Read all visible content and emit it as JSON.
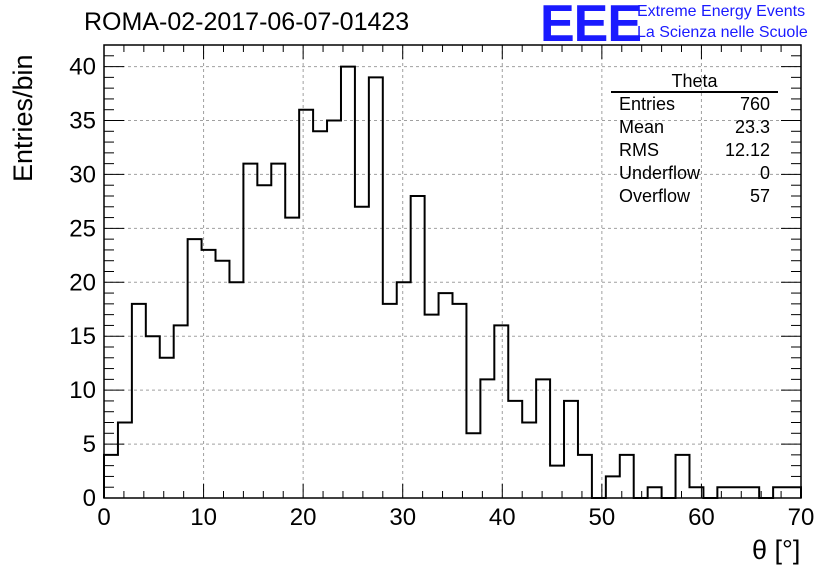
{
  "title": "ROMA-02-2017-06-07-01423",
  "logo": {
    "text": "EEE",
    "line1": "Extreme Energy Events",
    "line2": "La Scienza nelle Scuole"
  },
  "stats": {
    "name": "Theta",
    "rows": [
      {
        "label": "Entries",
        "value": "760"
      },
      {
        "label": "Mean",
        "value": "23.3"
      },
      {
        "label": "RMS",
        "value": "12.12"
      },
      {
        "label": "Underflow",
        "value": "0"
      },
      {
        "label": "Overflow",
        "value": "57"
      }
    ]
  },
  "colors": {
    "line": "#000000",
    "grid": "#a0a0a0",
    "logo": "#1a1aff"
  },
  "chart_data": {
    "type": "bar",
    "style": "step-histogram",
    "title": "ROMA-02-2017-06-07-01423",
    "xlabel": "θ [°]",
    "ylabel": "Entries/bin",
    "xlim": [
      0,
      70
    ],
    "ylim": [
      0,
      42
    ],
    "xticks": [
      0,
      10,
      20,
      30,
      40,
      50,
      60,
      70
    ],
    "yticks": [
      0,
      5,
      10,
      15,
      20,
      25,
      30,
      35,
      40
    ],
    "grid": true,
    "bin_width": 1.4,
    "values": [
      4,
      7,
      18,
      15,
      13,
      16,
      24,
      23,
      22,
      20,
      31,
      29,
      31,
      26,
      36,
      34,
      35,
      40,
      27,
      39,
      18,
      20,
      28,
      17,
      19,
      18,
      6,
      11,
      16,
      9,
      7,
      11,
      3,
      9,
      4,
      0,
      2,
      4,
      0,
      1,
      0,
      4,
      1,
      0,
      1,
      1,
      1,
      0,
      1,
      1
    ]
  }
}
